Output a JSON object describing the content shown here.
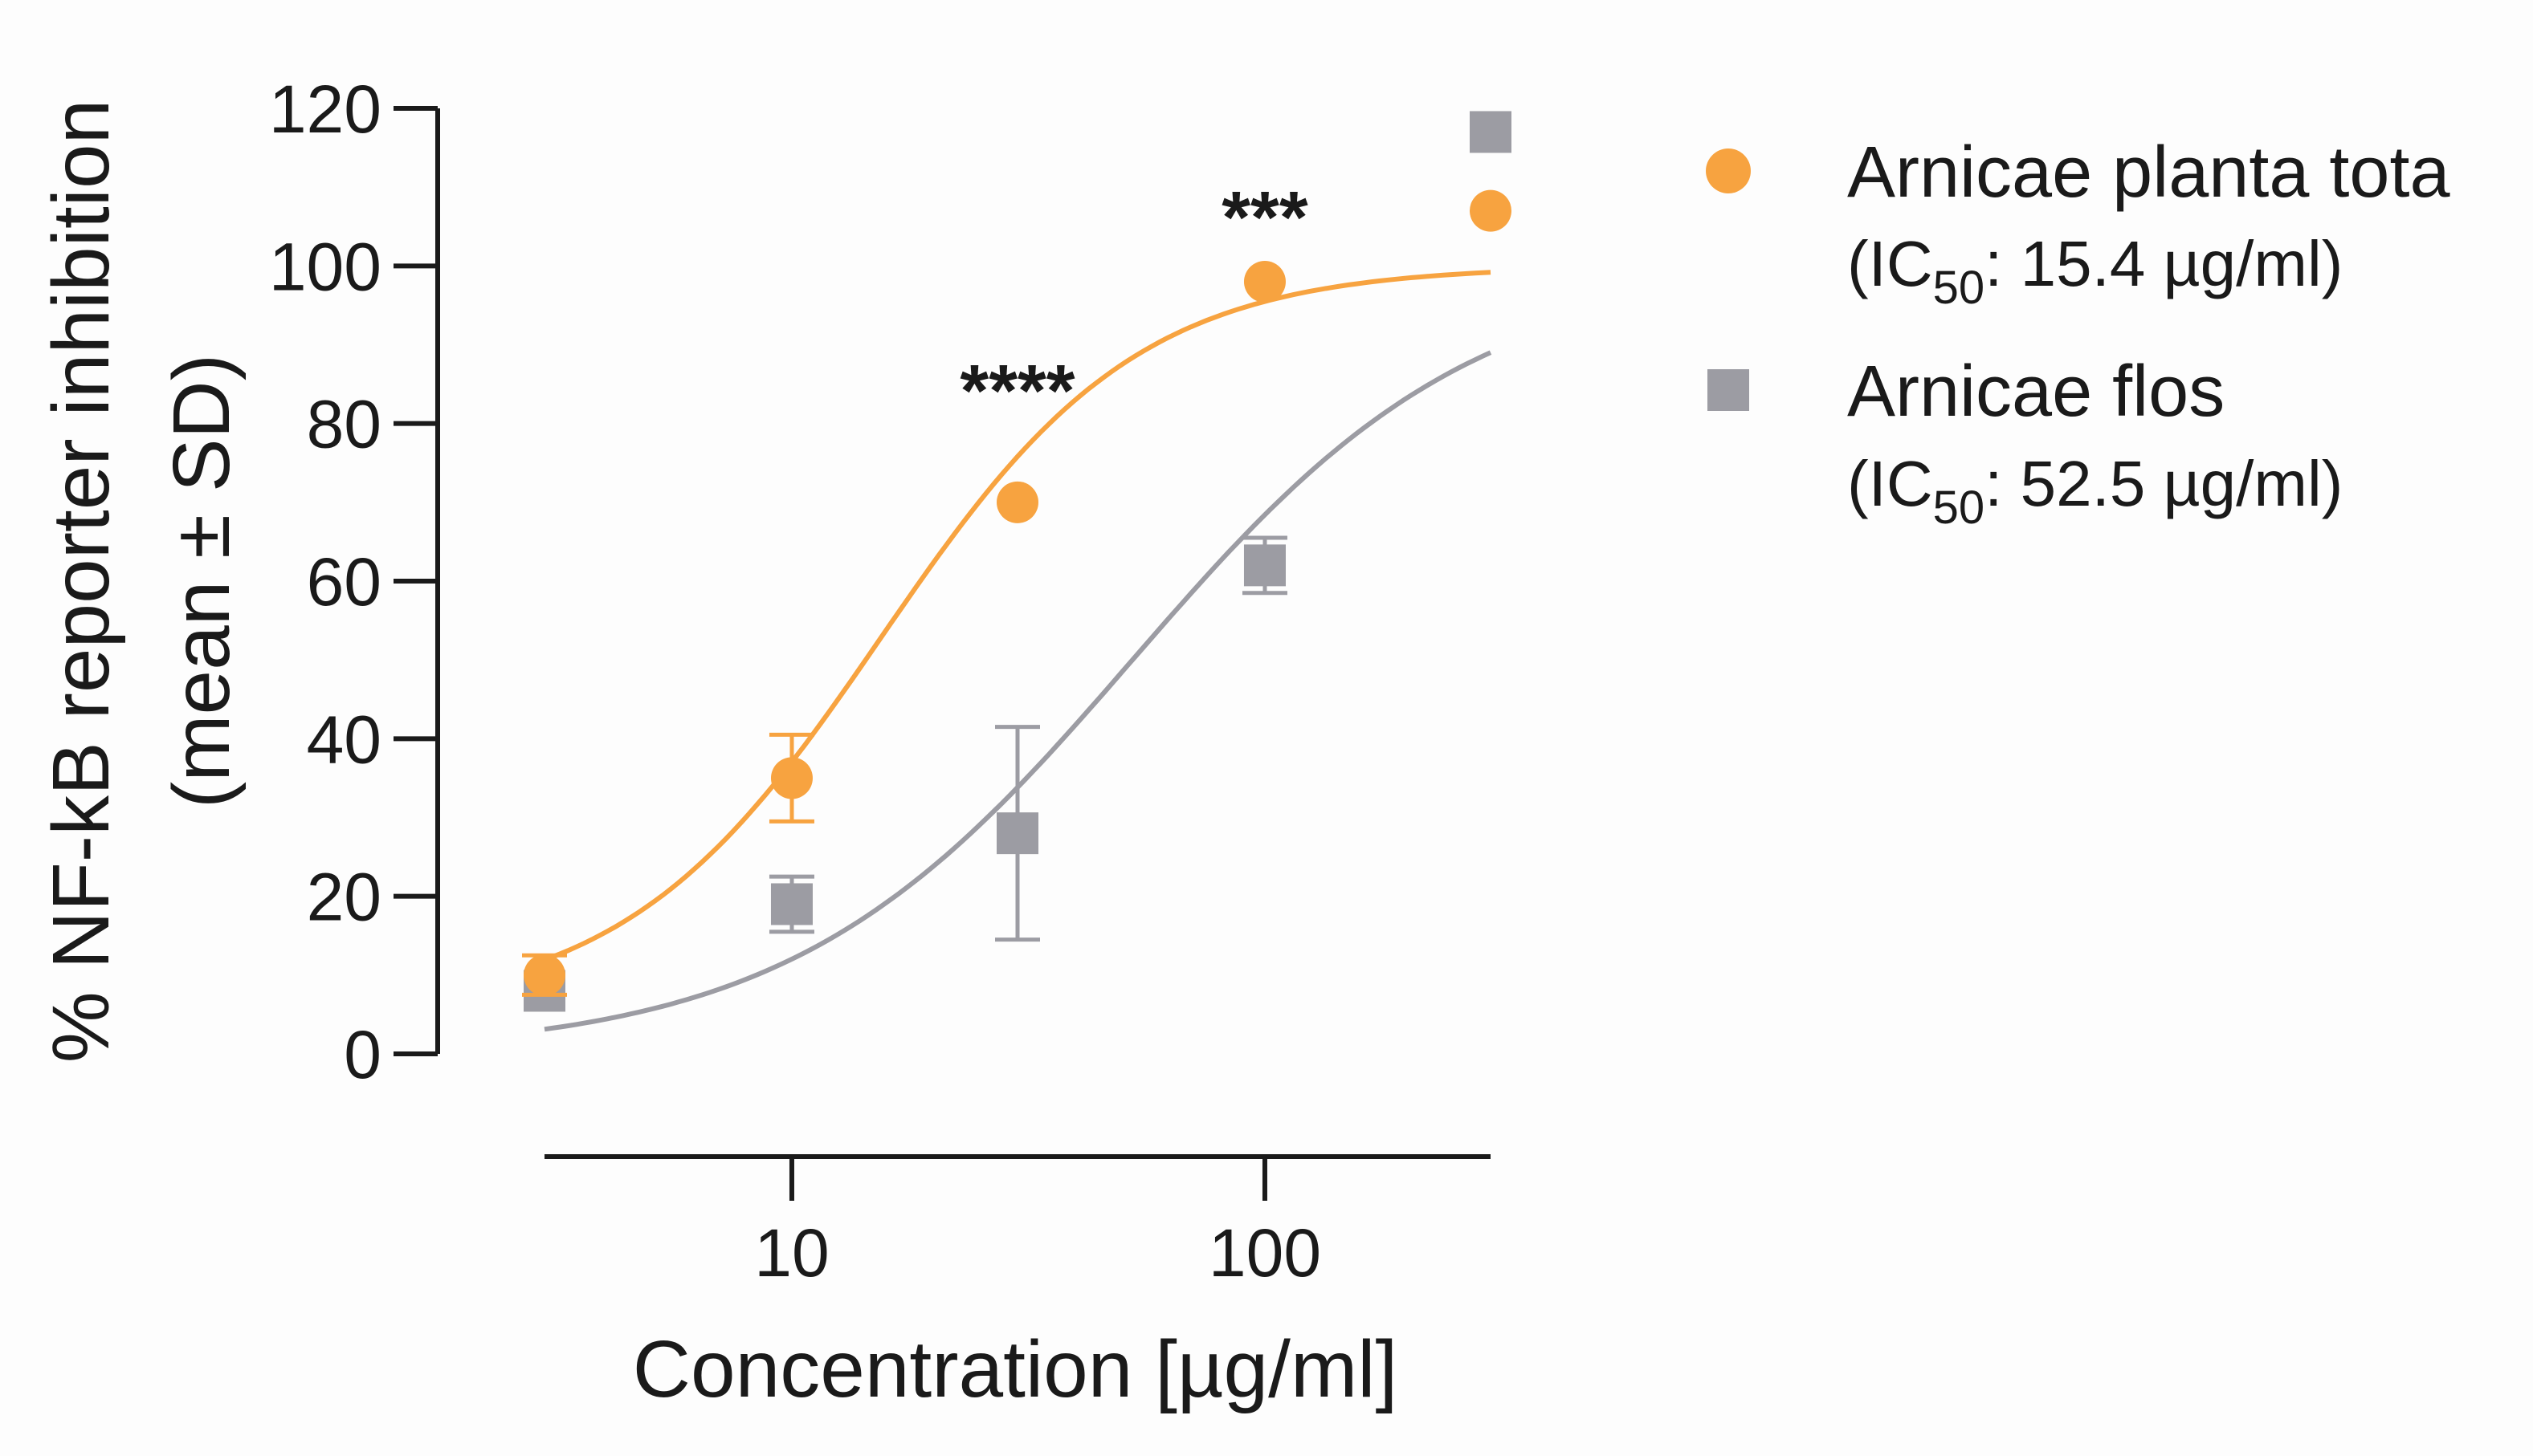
{
  "colors": {
    "orange": "#f7a340",
    "gray": "#9c9ca3",
    "axis": "#1a1a1a"
  },
  "chart_data": {
    "type": "scatter",
    "xscale": "log",
    "xlim": [
      3,
      300
    ],
    "ylim": [
      0,
      120
    ],
    "xticks": [
      10,
      100
    ],
    "xtick_labels": [
      "10",
      "100"
    ],
    "yticks": [
      0,
      20,
      40,
      60,
      80,
      100,
      120
    ],
    "ytick_labels": [
      "0",
      "20",
      "40",
      "60",
      "80",
      "100",
      "120"
    ],
    "xlabel": "Concentration [µg/ml]",
    "ylabel_line1": "% NF-kB reporter inhibition",
    "ylabel_line2": "(mean ± SD)",
    "series": [
      {
        "name": "Arnicae planta tota",
        "ic50_label": "(IC",
        "ic50_sub": "50",
        "ic50_value": ": 15.4 µg/ml)",
        "ic50": 15.4,
        "marker": "circle",
        "color": "#f7a340",
        "fit": {
          "bottom": 5.5,
          "top": 100,
          "hill": 1.6
        },
        "points": [
          {
            "x": 3,
            "y": 10,
            "sd": 2.5
          },
          {
            "x": 10,
            "y": 35,
            "sd": 5.5
          },
          {
            "x": 30,
            "y": 70,
            "sd": 0
          },
          {
            "x": 100,
            "y": 98,
            "sd": 0
          },
          {
            "x": 300,
            "y": 107,
            "sd": 0
          }
        ]
      },
      {
        "name": "Arnicae flos",
        "ic50_label": "(IC",
        "ic50_sub": "50",
        "ic50_value": ": 52.5 µg/ml)",
        "ic50": 52.5,
        "marker": "square",
        "color": "#9c9ca3",
        "fit": {
          "bottom": 0,
          "top": 100,
          "hill": 1.2
        },
        "points": [
          {
            "x": 3,
            "y": 8,
            "sd": 0
          },
          {
            "x": 10,
            "y": 19,
            "sd": 3.5
          },
          {
            "x": 30,
            "y": 28,
            "sd": 13.5
          },
          {
            "x": 100,
            "y": 62,
            "sd": 3.5
          },
          {
            "x": 300,
            "y": 117,
            "sd": 0
          }
        ]
      }
    ],
    "annotations": [
      {
        "text": "****",
        "x": 30,
        "y": 85
      },
      {
        "text": "***",
        "x": 100,
        "y": 107
      }
    ]
  }
}
